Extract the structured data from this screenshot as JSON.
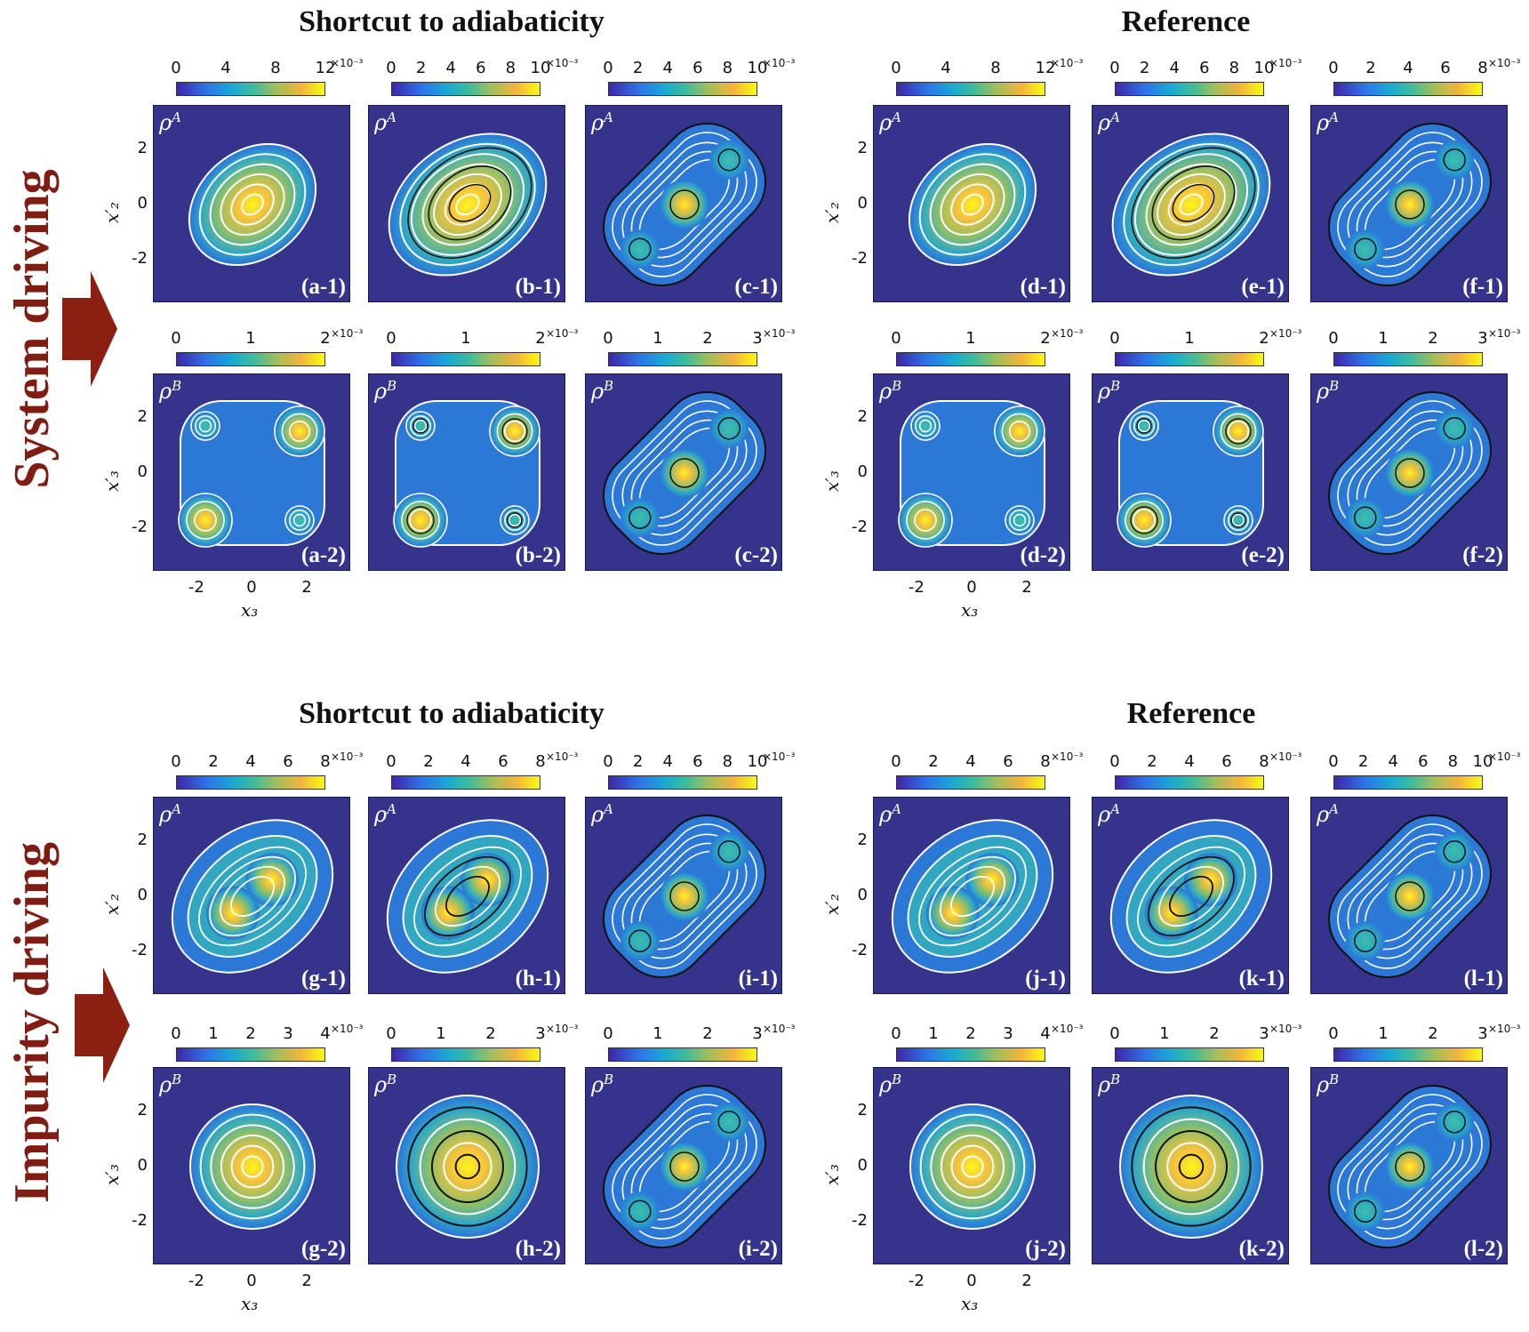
{
  "titles": {
    "sta_top": "Shortcut to adiabaticity",
    "ref_top": "Reference",
    "sta_bottom": "Shortcut to adiabaticity",
    "ref_bottom": "Reference"
  },
  "side_labels": {
    "top": "System driving",
    "bottom": "Impurity driving"
  },
  "axes": {
    "y_ticks": [
      "2",
      "0",
      "-2"
    ],
    "x_ticks": [
      "-2",
      "0",
      "2"
    ],
    "ylabel_A": "x′₂",
    "ylabel_B": "x′₃",
    "xlabel": "x₃"
  },
  "rho": {
    "A": "ρ",
    "A_sup": "A",
    "B": "ρ",
    "B_sup": "B"
  },
  "colors": {
    "panel_bg": "#35338b",
    "accent": "#7f1d12"
  },
  "panels": [
    {
      "label": "(a-1)",
      "rho": "A",
      "ticks": [
        "0",
        "4",
        "8",
        "12"
      ],
      "mult": "×10⁻³"
    },
    {
      "label": "(b-1)",
      "rho": "A",
      "ticks": [
        "0",
        "2",
        "4",
        "6",
        "8",
        "10"
      ],
      "mult": "×10⁻³"
    },
    {
      "label": "(c-1)",
      "rho": "A",
      "ticks": [
        "0",
        "2",
        "4",
        "6",
        "8",
        "10"
      ],
      "mult": "×10⁻³"
    },
    {
      "label": "(d-1)",
      "rho": "A",
      "ticks": [
        "0",
        "4",
        "8",
        "12"
      ],
      "mult": "×10⁻³"
    },
    {
      "label": "(e-1)",
      "rho": "A",
      "ticks": [
        "0",
        "2",
        "4",
        "6",
        "8",
        "10"
      ],
      "mult": "×10⁻³"
    },
    {
      "label": "(f-1)",
      "rho": "A",
      "ticks": [
        "0",
        "2",
        "4",
        "6",
        "8"
      ],
      "mult": "×10⁻³"
    },
    {
      "label": "(a-2)",
      "rho": "B",
      "ticks": [
        "0",
        "1",
        "2"
      ],
      "mult": "×10⁻³"
    },
    {
      "label": "(b-2)",
      "rho": "B",
      "ticks": [
        "0",
        "1",
        "2"
      ],
      "mult": "×10⁻³"
    },
    {
      "label": "(c-2)",
      "rho": "B",
      "ticks": [
        "0",
        "1",
        "2",
        "3"
      ],
      "mult": "×10⁻³"
    },
    {
      "label": "(d-2)",
      "rho": "B",
      "ticks": [
        "0",
        "1",
        "2"
      ],
      "mult": "×10⁻³"
    },
    {
      "label": "(e-2)",
      "rho": "B",
      "ticks": [
        "0",
        "1",
        "2"
      ],
      "mult": "×10⁻³"
    },
    {
      "label": "(f-2)",
      "rho": "B",
      "ticks": [
        "0",
        "1",
        "2",
        "3"
      ],
      "mult": "×10⁻³"
    },
    {
      "label": "(g-1)",
      "rho": "A",
      "ticks": [
        "0",
        "2",
        "4",
        "6",
        "8"
      ],
      "mult": "×10⁻³"
    },
    {
      "label": "(h-1)",
      "rho": "A",
      "ticks": [
        "0",
        "2",
        "4",
        "6",
        "8"
      ],
      "mult": "×10⁻³"
    },
    {
      "label": "(i-1)",
      "rho": "A",
      "ticks": [
        "0",
        "2",
        "4",
        "6",
        "8",
        "10"
      ],
      "mult": "×10⁻³"
    },
    {
      "label": "(j-1)",
      "rho": "A",
      "ticks": [
        "0",
        "2",
        "4",
        "6",
        "8"
      ],
      "mult": "×10⁻³"
    },
    {
      "label": "(k-1)",
      "rho": "A",
      "ticks": [
        "0",
        "2",
        "4",
        "6",
        "8"
      ],
      "mult": "×10⁻³"
    },
    {
      "label": "(l-1)",
      "rho": "A",
      "ticks": [
        "0",
        "2",
        "4",
        "6",
        "8",
        "10"
      ],
      "mult": "×10⁻³"
    },
    {
      "label": "(g-2)",
      "rho": "B",
      "ticks": [
        "0",
        "1",
        "2",
        "3",
        "4"
      ],
      "mult": "×10⁻³"
    },
    {
      "label": "(h-2)",
      "rho": "B",
      "ticks": [
        "0",
        "1",
        "2",
        "3"
      ],
      "mult": "×10⁻³"
    },
    {
      "label": "(i-2)",
      "rho": "B",
      "ticks": [
        "0",
        "1",
        "2",
        "3"
      ],
      "mult": "×10⁻³"
    },
    {
      "label": "(j-2)",
      "rho": "B",
      "ticks": [
        "0",
        "1",
        "2",
        "3",
        "4"
      ],
      "mult": "×10⁻³"
    },
    {
      "label": "(k-2)",
      "rho": "B",
      "ticks": [
        "0",
        "1",
        "2",
        "3"
      ],
      "mult": "×10⁻³"
    },
    {
      "label": "(l-2)",
      "rho": "B",
      "ticks": [
        "0",
        "1",
        "2",
        "3"
      ],
      "mult": "×10⁻³"
    }
  ]
}
